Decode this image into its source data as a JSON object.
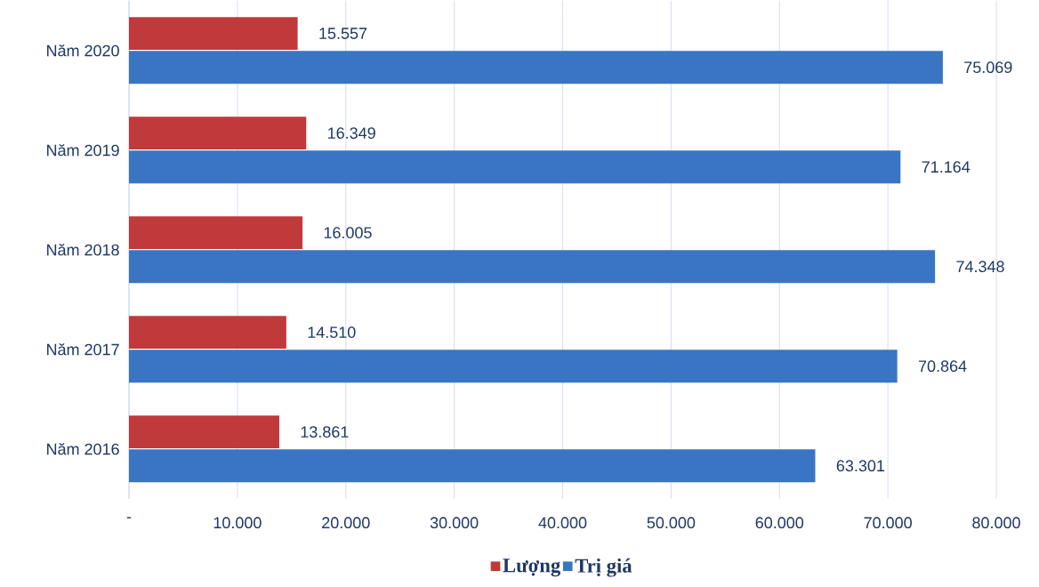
{
  "chart_data": {
    "type": "bar",
    "orientation": "horizontal",
    "categories": [
      "Năm 2020",
      "Năm 2019",
      "Năm 2018",
      "Năm 2017",
      "Năm 2016"
    ],
    "series": [
      {
        "name": "Lượng",
        "color": "#c0393b",
        "values": [
          15557,
          16349,
          16005,
          14510,
          13861
        ],
        "value_labels": [
          "15.557",
          "16.349",
          "16.005",
          "14.510",
          "13.861"
        ]
      },
      {
        "name": "Trị giá",
        "color": "#3a75c4",
        "values": [
          75069,
          71164,
          74348,
          70864,
          63301
        ],
        "value_labels": [
          "75.069",
          "71.164",
          "74.348",
          "70.864",
          "63.301"
        ]
      }
    ],
    "xlim": [
      0,
      80000
    ],
    "xticks": [
      {
        "value": 0,
        "label": "-"
      },
      {
        "value": 10000,
        "label": "10.000"
      },
      {
        "value": 20000,
        "label": "20.000"
      },
      {
        "value": 30000,
        "label": "30.000"
      },
      {
        "value": 40000,
        "label": "40.000"
      },
      {
        "value": 50000,
        "label": "50.000"
      },
      {
        "value": 60000,
        "label": "60.000"
      },
      {
        "value": 70000,
        "label": "70.000"
      },
      {
        "value": 80000,
        "label": "80.000"
      }
    ],
    "grid": "x",
    "legend": "bottom"
  }
}
